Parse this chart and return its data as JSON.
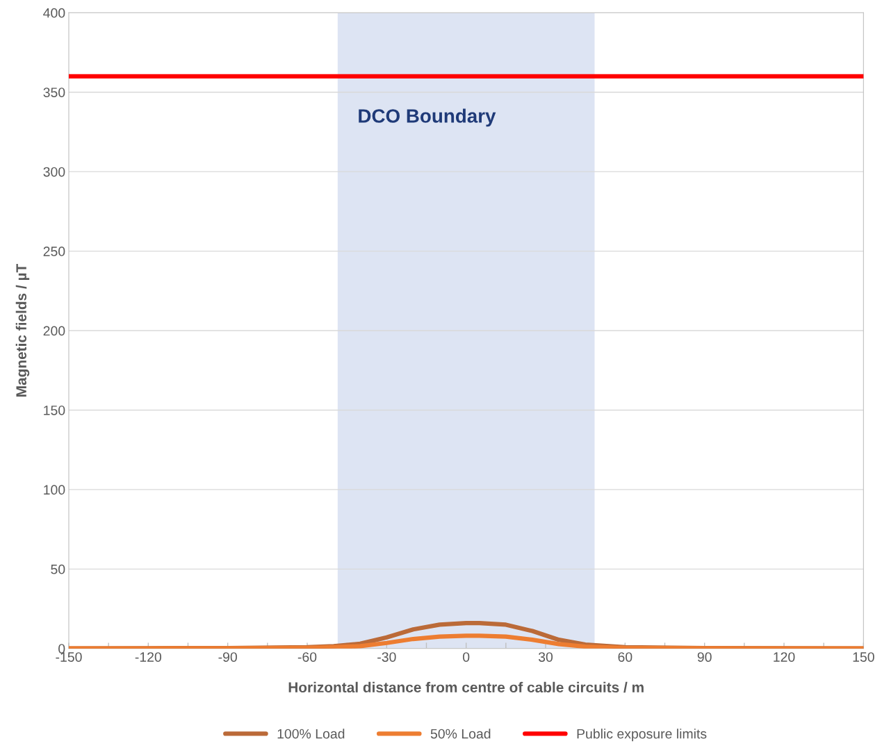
{
  "chart_data": {
    "type": "line",
    "xlabel": "Horizontal distance from centre of cable circuits / m",
    "ylabel": "Magnetic fields / µT",
    "xlim": [
      -150,
      150
    ],
    "ylim": [
      0,
      400
    ],
    "xticks": [
      -150,
      {
        "value": -135,
        "label": null
      },
      -120,
      {
        "value": -105,
        "label": null
      },
      -90,
      {
        "value": -75,
        "label": null
      },
      -60,
      {
        "value": -45,
        "label": null
      },
      -30,
      {
        "value": -15,
        "label": null
      },
      0,
      {
        "value": 15,
        "label": null
      },
      30,
      {
        "value": 45,
        "label": null
      },
      60,
      {
        "value": 75,
        "label": null
      },
      90,
      {
        "value": 105,
        "label": null
      },
      120,
      {
        "value": 135,
        "label": null
      },
      150
    ],
    "yticks": [
      0,
      50,
      100,
      150,
      200,
      250,
      300,
      350,
      400
    ],
    "grid": "y",
    "legend": "bottom",
    "line_style": "solid",
    "marker": "none",
    "bands": [
      {
        "axis": "x",
        "from": -48.5,
        "to": 48.5,
        "label": "DCO Boundary",
        "color": "#dde4f3"
      }
    ],
    "series": [
      {
        "name": "100% Load",
        "color": "#bb6a38",
        "x": [
          -150,
          -120,
          -90,
          -60,
          -50,
          -40,
          -30,
          -20,
          -10,
          0,
          5,
          15,
          25,
          35,
          45,
          60,
          90,
          120,
          150
        ],
        "values": [
          0.1,
          0.2,
          0.3,
          0.8,
          1.5,
          3,
          7,
          12,
          15,
          16,
          16,
          15,
          11,
          5.5,
          2.5,
          0.8,
          0.3,
          0.2,
          0.1
        ]
      },
      {
        "name": "50% Load",
        "color": "#ed7d31",
        "x": [
          -150,
          -120,
          -90,
          -60,
          -50,
          -40,
          -30,
          -20,
          -10,
          0,
          5,
          15,
          25,
          35,
          45,
          60,
          90,
          120,
          150
        ],
        "values": [
          0.1,
          0.1,
          0.2,
          0.4,
          0.8,
          1.5,
          3.5,
          6,
          7.5,
          8,
          8,
          7.5,
          5.5,
          2.8,
          1.2,
          0.4,
          0.2,
          0.1,
          0.1
        ]
      },
      {
        "name": "Public exposure limits",
        "color": "#ff0000",
        "x": [
          -150,
          150
        ],
        "values": [
          360,
          360
        ]
      }
    ]
  }
}
